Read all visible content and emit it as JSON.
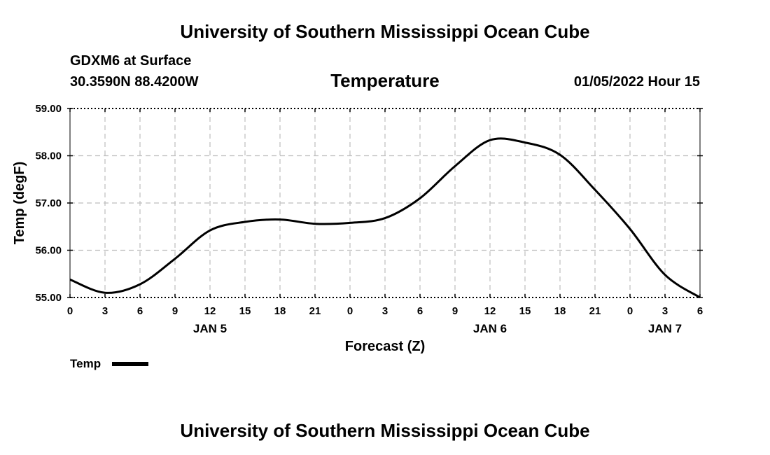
{
  "header": {
    "top_title": "University of Southern Mississippi Ocean Cube",
    "station": "GDXM6 at Surface",
    "location": "30.3590N  88.4200W",
    "chart_title": "Temperature",
    "datetime": "01/05/2022 Hour 15"
  },
  "footer": {
    "bottom_title": "University of Southern Mississippi Ocean Cube"
  },
  "chart_data": {
    "type": "line",
    "title": "Temperature",
    "xlabel": "Forecast (Z)",
    "ylabel": "Temp (degF)",
    "xlim": [
      0,
      54
    ],
    "ylim": [
      55.0,
      59.0
    ],
    "x_unit": "hours from 01/05/2022 00Z",
    "x_ticks": [
      0,
      3,
      6,
      9,
      12,
      15,
      18,
      21,
      24,
      27,
      30,
      33,
      36,
      39,
      42,
      45,
      48,
      51,
      54
    ],
    "x_tick_labels": [
      "0",
      "3",
      "6",
      "9",
      "12",
      "15",
      "18",
      "21",
      "0",
      "3",
      "6",
      "9",
      "12",
      "15",
      "18",
      "21",
      "0",
      "3",
      "6"
    ],
    "day_labels": [
      {
        "x": 12,
        "label": "JAN 5"
      },
      {
        "x": 36,
        "label": "JAN 6"
      },
      {
        "x": 51,
        "label": "JAN 7"
      }
    ],
    "y_ticks": [
      55.0,
      56.0,
      57.0,
      58.0,
      59.0
    ],
    "y_tick_labels": [
      "55.00",
      "56.00",
      "57.00",
      "58.00",
      "59.00"
    ],
    "grid": true,
    "legend_position": "bottom-left",
    "series": [
      {
        "name": "Temp",
        "color": "#000000",
        "x": [
          0,
          3,
          6,
          9,
          12,
          15,
          18,
          21,
          24,
          27,
          30,
          33,
          36,
          39,
          42,
          45,
          48,
          51,
          54
        ],
        "y": [
          55.38,
          55.1,
          55.28,
          55.82,
          56.42,
          56.6,
          56.65,
          56.56,
          56.58,
          56.68,
          57.1,
          57.78,
          58.33,
          58.28,
          58.02,
          57.28,
          56.45,
          55.48,
          55.0
        ]
      }
    ]
  }
}
